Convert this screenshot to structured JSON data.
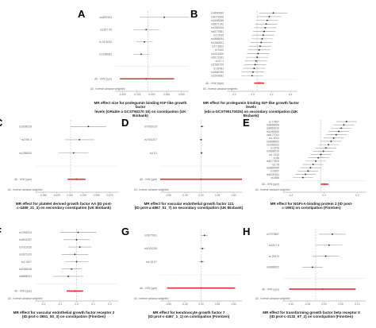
{
  "colors": {
    "point": "#222222",
    "ci": "#9a9a9a",
    "summary": "#e0303a",
    "zero": "#bdbdbd",
    "axis": "#888888",
    "label": "#666666"
  },
  "chart_data": [
    {
      "panel": "A",
      "type": "forest",
      "caption": [
        "MR effect size for prolegumin binding IGF-like growth factor",
        "levels (GRable a GCST90170 15) on constipation (UK Biobank)"
      ],
      "rows": [
        {
          "label": "rs4897811",
          "est": 0.1,
          "lo": -0.05,
          "hi": 0.25
        },
        {
          "label": "rs1827 09",
          "est": -0.01,
          "lo": -0.09,
          "hi": 0.07
        },
        {
          "label": "rs 01 6030",
          "est": -0.02,
          "lo": -0.07,
          "hi": 0.03
        },
        {
          "label": "rs1248081",
          "est": -0.04,
          "lo": -0.09,
          "hi": 0.01
        }
      ],
      "summary": [
        {
          "label": "All - IVW (ype)",
          "est": -0.01,
          "lo": -0.17,
          "hi": 0.16,
          "red": true
        }
      ],
      "footer": "All - Inverse variance weighted",
      "xlim": [
        -0.2,
        0.25
      ],
      "ticks": [
        "-0.200",
        "-0.025",
        "0.000",
        "0.025",
        "0.050"
      ]
    },
    {
      "panel": "B",
      "type": "forest",
      "caption": [
        "MR effect for prolegumin binding IGF-like growth factor levels",
        "(ebi-a-GCST90170025) on secondary constipation (UK Biobank)"
      ],
      "rows": [
        {
          "label": "rs4860060",
          "est": 0.16,
          "lo": 0.02,
          "hi": 0.3
        },
        {
          "label": "rs6073905",
          "est": 0.12,
          "lo": 0.0,
          "hi": 0.24
        },
        {
          "label": "rs1608266",
          "est": 0.1,
          "lo": -0.01,
          "hi": 0.21
        },
        {
          "label": "rs6877142",
          "est": 0.09,
          "lo": -0.02,
          "hi": 0.2
        },
        {
          "label": "rs1560400",
          "est": 0.08,
          "lo": -0.03,
          "hi": 0.19
        },
        {
          "label": "rs6177881",
          "est": 0.07,
          "lo": -0.04,
          "hi": 0.18
        },
        {
          "label": "rs1 0035",
          "est": 0.06,
          "lo": -0.05,
          "hi": 0.17
        },
        {
          "label": "rs4865094",
          "est": 0.05,
          "lo": -0.06,
          "hi": 0.16
        },
        {
          "label": "rs1560901",
          "est": 0.04,
          "lo": -0.07,
          "hi": 0.15
        },
        {
          "label": "rs17 8822",
          "est": 0.03,
          "lo": -0.08,
          "hi": 0.14
        },
        {
          "label": "rs 9100",
          "est": 0.02,
          "lo": -0.09,
          "hi": 0.13
        },
        {
          "label": "rs1011500",
          "est": 0.01,
          "lo": -0.1,
          "hi": 0.12
        },
        {
          "label": "rs6173181",
          "est": 0.0,
          "lo": -0.11,
          "hi": 0.11
        },
        {
          "label": "rs 07 1",
          "est": -0.01,
          "lo": -0.12,
          "hi": 0.1
        },
        {
          "label": "rs1562720",
          "est": -0.02,
          "lo": -0.13,
          "hi": 0.09
        },
        {
          "label": "rs 26781",
          "est": -0.03,
          "lo": -0.14,
          "hi": 0.08
        },
        {
          "label": "rs4866780",
          "est": -0.04,
          "lo": -0.15,
          "hi": 0.07
        },
        {
          "label": "rs1502681",
          "est": -0.05,
          "lo": -0.16,
          "hi": 0.06
        }
      ],
      "summary": [
        {
          "label": "All - IVW (type)",
          "est": 0.02,
          "lo": -0.03,
          "hi": 0.07,
          "red": true
        }
      ],
      "footer": "All - Inverse variance weighted",
      "xlim": [
        -0.3,
        0.4
      ],
      "ticks": [
        "-0.2",
        "0.0",
        "0.2",
        "0.4"
      ]
    },
    {
      "panel": "C",
      "type": "forest",
      "caption": [
        "MR effect for platelet derived growth factor AA (ID post-",
        "c-4499_21_3) on secondary constipation (UK Biobank)"
      ],
      "rows": [
        {
          "label": "rs2608219",
          "est": 0.03,
          "lo": 0.0,
          "hi": 0.06
        },
        {
          "label": "rs1760 3",
          "est": 0.015,
          "lo": -0.01,
          "hi": 0.04
        },
        {
          "label": "rs1088003",
          "est": 0.005,
          "lo": -0.02,
          "hi": 0.03
        }
      ],
      "summary": [
        {
          "label": "All - IVW (ype)",
          "est": 0.01,
          "lo": -0.005,
          "hi": 0.025,
          "red": true
        }
      ],
      "footer": "All - Inverse variance weighted",
      "xlim": [
        -0.06,
        0.08
      ],
      "ticks": [
        "-0.050",
        "-0.025",
        "0.000",
        "0.025",
        "0.050",
        "0.075"
      ]
    },
    {
      "panel": "D",
      "type": "forest",
      "caption": [
        "MR effect for vascular endothelial growth factor 121",
        "(ID:prot-a-4867_51_7) on secondary constipation (UK Biobank)"
      ],
      "rows": [
        {
          "label": "rs7952010",
          "est": 0.01,
          "lo": -0.01,
          "hi": 0.03
        },
        {
          "label": "rs7941207",
          "est": 0.0,
          "lo": -0.02,
          "hi": 0.02
        },
        {
          "label": "rs1 01",
          "est": 0.005,
          "lo": -0.01,
          "hi": 0.02
        }
      ],
      "summary": [
        {
          "label": "All - IVW (ype)",
          "est": 0.0,
          "lo": -0.5,
          "hi": 0.5,
          "red": true
        }
      ],
      "footer": "All - Inverse variance weighted",
      "xlim": [
        -0.5,
        0.5
      ],
      "ticks": [
        "-0.50",
        "-0.25",
        "0.00",
        "0.25",
        "0.50"
      ]
    },
    {
      "panel": "E",
      "type": "forest",
      "caption": [
        "MR effect for NGFI-A-binding protein 2 (ID post-",
        "c-1991) on constipation (FinnGen)"
      ],
      "rows": [
        {
          "label": "rs 17867",
          "est": 0.2,
          "lo": 0.12,
          "hi": 0.28
        },
        {
          "label": "rs4866008",
          "est": 0.18,
          "lo": 0.1,
          "hi": 0.26
        },
        {
          "label": "rs4863010",
          "est": 0.16,
          "lo": 0.08,
          "hi": 0.24
        },
        {
          "label": "rs1063060",
          "est": 0.14,
          "lo": 0.06,
          "hi": 0.22
        },
        {
          "label": "rs6177011",
          "est": 0.12,
          "lo": 0.04,
          "hi": 0.2
        },
        {
          "label": "rs1 6011",
          "est": 0.1,
          "lo": 0.02,
          "hi": 0.18
        },
        {
          "label": "rs4898902",
          "est": 0.08,
          "lo": 0.0,
          "hi": 0.16
        },
        {
          "label": "rs1066311",
          "est": 0.06,
          "lo": -0.02,
          "hi": 0.14
        },
        {
          "label": "rs 0076",
          "est": 0.04,
          "lo": -0.04,
          "hi": 0.12
        },
        {
          "label": "rs4866010",
          "est": 0.02,
          "lo": -0.06,
          "hi": 0.1
        },
        {
          "label": "rs1 0110",
          "est": 0.0,
          "lo": -0.08,
          "hi": 0.08
        },
        {
          "label": "rs 86",
          "est": -0.02,
          "lo": -0.1,
          "hi": 0.06
        },
        {
          "label": "rs6177820",
          "est": -0.04,
          "lo": -0.12,
          "hi": 0.04
        },
        {
          "label": "rs1 78",
          "est": -0.06,
          "lo": -0.14,
          "hi": 0.02
        },
        {
          "label": "rs4860090",
          "est": -0.08,
          "lo": -0.16,
          "hi": 0.0
        },
        {
          "label": "rs 0067",
          "est": -0.1,
          "lo": -0.18,
          "hi": -0.02
        },
        {
          "label": "rs6100161",
          "est": -0.12,
          "lo": -0.2,
          "hi": -0.04
        },
        {
          "label": "rs1866",
          "est": -0.14,
          "lo": -0.22,
          "hi": -0.06
        }
      ],
      "summary": [
        {
          "label": "All - IVW (ype)",
          "est": 0.03,
          "lo": 0.0,
          "hi": 0.06,
          "red": true
        }
      ],
      "footer": "All - Inverse variance weighted",
      "xlim": [
        -0.3,
        0.35
      ],
      "ticks": [
        "-0.2",
        "0.0",
        "0.2"
      ]
    },
    {
      "panel": "F",
      "type": "forest",
      "caption": [
        "MR effect for vascular endothelial growth factor receptor 2",
        "(ID:prot-c-3651_50_3) on constipation (FinnGen)"
      ],
      "rows": [
        {
          "label": "rs7952014",
          "est": 0.01,
          "lo": -0.1,
          "hi": 0.12
        },
        {
          "label": "rs4803197",
          "est": 0.0,
          "lo": -0.08,
          "hi": 0.08
        },
        {
          "label": "rs7012035",
          "est": 0.02,
          "lo": -0.05,
          "hi": 0.09
        },
        {
          "label": "rs1871120",
          "est": -0.01,
          "lo": -0.09,
          "hi": 0.07
        },
        {
          "label": "rs1 0007",
          "est": 0.0,
          "lo": -0.07,
          "hi": 0.07
        },
        {
          "label": "rs2066018",
          "est": -0.03,
          "lo": -0.09,
          "hi": 0.03
        },
        {
          "label": "rs8886011",
          "est": -0.05,
          "lo": -0.14,
          "hi": 0.04
        }
      ],
      "summary": [
        {
          "label": "All - IVW (ype)",
          "est": -0.01,
          "lo": -0.06,
          "hi": 0.04,
          "red": true
        }
      ],
      "footer": "All - Inverse variance weighted",
      "xlim": [
        -0.25,
        0.25
      ],
      "ticks": [
        "-0.2",
        "-0.1",
        "0.0",
        "0.1",
        "0.2"
      ]
    },
    {
      "panel": "G",
      "type": "forest",
      "caption": [
        "MR effect for keratinocyte growth factor 7",
        "(ID:prot-c-4467_1_1) on constipation (FinnGen)"
      ],
      "rows": [
        {
          "label": "rs2877061",
          "est": 0.05,
          "lo": 0.0,
          "hi": 0.1
        },
        {
          "label": "rs1001206",
          "est": 0.02,
          "lo": -0.02,
          "hi": 0.06
        },
        {
          "label": "rs4 44 07",
          "est": 0.01,
          "lo": -0.03,
          "hi": 0.05
        }
      ],
      "summary": [
        {
          "label": "All - IVW (ype)",
          "est": 0.0,
          "lo": -0.5,
          "hi": 0.5,
          "red": true
        }
      ],
      "footer": "All - Inverse variance weighted",
      "xlim": [
        -0.6,
        0.6
      ],
      "ticks": [
        "-0.50",
        "-0.25",
        "0.00",
        "0.25",
        "0.50"
      ]
    },
    {
      "panel": "H",
      "type": "forest",
      "caption": [
        "MR effect for transforming growth factor beta receptor II",
        "(ID:prot-c-3132_97_2) on constipation (FinnGen)"
      ],
      "rows": [
        {
          "label": "rs7973857",
          "est": 0.05,
          "lo": 0.01,
          "hi": 0.09
        },
        {
          "label": "rs1817 5",
          "est": 0.04,
          "lo": 0.0,
          "hi": 0.08
        },
        {
          "label": "rs 29470",
          "est": 0.03,
          "lo": -0.01,
          "hi": 0.07
        },
        {
          "label": "rs4888002",
          "est": -0.01,
          "lo": -0.04,
          "hi": 0.02
        }
      ],
      "summary": [
        {
          "label": "All - IVW (ype)",
          "est": 0.02,
          "lo": -0.08,
          "hi": 0.12,
          "red": true
        }
      ],
      "footer": "All - Inverse variance weighted",
      "xlim": [
        -0.1,
        0.15
      ],
      "ticks": [
        "-0.10",
        "-0.05",
        "0.00",
        "0.05",
        "0.10"
      ]
    }
  ]
}
